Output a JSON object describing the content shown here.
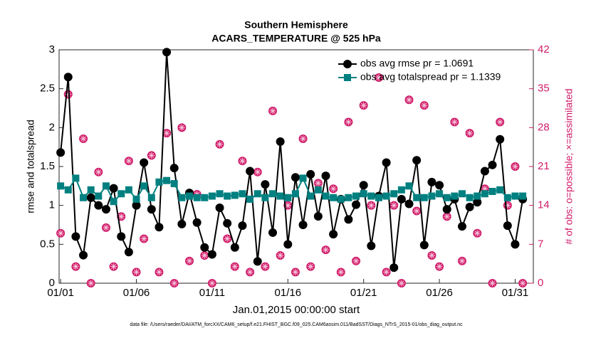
{
  "chart_data": {
    "type": "line",
    "title": "Southern Hemisphere",
    "subtitle": "ACARS_TEMPERATURE @ 525 hPa",
    "xlabel": "Jan.01,2015 00:00:00 start",
    "ylabel": "rmse and totalspread",
    "y2label": "# of obs: o=possible; ×=assimilated",
    "footnote": "data file: /Users/raeder/DAI/ATM_forcXX/CAM6_setup/f.e21.FHIST_BGC.f09_025.CAM6assim.011/BadSST/Diags_NTrS_2015-01/obs_diag_output.nc",
    "x": [
      1,
      1.5,
      2,
      2.5,
      3,
      3.5,
      4,
      4.5,
      5,
      5.5,
      6,
      6.5,
      7,
      7.5,
      8,
      8.5,
      9,
      9.5,
      10,
      10.5,
      11,
      11.5,
      12,
      12.5,
      13,
      13.5,
      14,
      14.5,
      15,
      15.5,
      16,
      16.5,
      17,
      17.5,
      18,
      18.5,
      19,
      19.5,
      20,
      20.5,
      21,
      21.5,
      22,
      22.5,
      23,
      23.5,
      24,
      24.5,
      25,
      25.5,
      26,
      26.5,
      27,
      27.5,
      28,
      28.5,
      29,
      29.5,
      30,
      30.5,
      31,
      31.5
    ],
    "series": [
      {
        "name": "obs avg rmse pr = 1.0691",
        "color": "#000000",
        "values": [
          1.68,
          2.65,
          0.6,
          0.36,
          1.1,
          1.0,
          0.95,
          1.22,
          0.6,
          0.4,
          1.0,
          1.55,
          0.95,
          0.72,
          2.97,
          1.48,
          0.76,
          1.16,
          0.78,
          0.46,
          0.37,
          0.97,
          0.77,
          0.46,
          0.74,
          1.44,
          0.28,
          1.27,
          0.65,
          1.82,
          0.5,
          1.36,
          0.75,
          1.4,
          0.86,
          1.38,
          0.63,
          1.08,
          0.82,
          1.01,
          1.26,
          0.48,
          1.12,
          1.55,
          0.2,
          1.08,
          1.02,
          1.58,
          0.49,
          1.3,
          1.26,
          0.95,
          1.08,
          0.73,
          0.98,
          1.04,
          1.44,
          1.52,
          1.85,
          0.74,
          0.5,
          1.08
        ]
      },
      {
        "name": "obs avg totalspread pr = 1.1339",
        "color": "#008080",
        "values": [
          1.25,
          1.2,
          1.35,
          1.1,
          1.2,
          1.12,
          1.25,
          1.05,
          1.15,
          1.2,
          1.08,
          1.25,
          1.1,
          1.3,
          1.32,
          1.28,
          1.1,
          1.12,
          1.1,
          1.1,
          1.12,
          1.15,
          1.12,
          1.13,
          1.15,
          1.08,
          1.15,
          1.1,
          1.15,
          1.12,
          1.1,
          1.15,
          1.35,
          1.12,
          1.2,
          1.12,
          1.1,
          1.08,
          1.1,
          1.12,
          1.15,
          1.12,
          1.1,
          1.12,
          1.15,
          1.2,
          1.25,
          1.1,
          1.1,
          1.12,
          1.15,
          1.1,
          1.12,
          1.15,
          1.1,
          1.12,
          1.15,
          1.18,
          1.2,
          1.1,
          1.12,
          1.12
        ]
      }
    ],
    "y2_series": {
      "color": "#d01c6a",
      "axis": "y2",
      "values": [
        9,
        34,
        3,
        26,
        0,
        20,
        10,
        3,
        12,
        22,
        2,
        8,
        23,
        2,
        27,
        0,
        28,
        4,
        16,
        5,
        0,
        25,
        8,
        3,
        22,
        2,
        20,
        3,
        31,
        5,
        14,
        2,
        26,
        3,
        18,
        6,
        17,
        2,
        29,
        4,
        32,
        14,
        37,
        2,
        14,
        0,
        33,
        13,
        32,
        5,
        3,
        12,
        29,
        4,
        27,
        9,
        17,
        0,
        29,
        14,
        21,
        0
      ]
    },
    "xlim": [
      0.9,
      32.2
    ],
    "xticks": [
      {
        "value": 1,
        "label": "01/01"
      },
      {
        "value": 6,
        "label": "01/06"
      },
      {
        "value": 11,
        "label": "01/11"
      },
      {
        "value": 16,
        "label": "01/16"
      },
      {
        "value": 21,
        "label": "01/21"
      },
      {
        "value": 26,
        "label": "01/26"
      },
      {
        "value": 31,
        "label": "01/31"
      }
    ],
    "ylim": [
      0,
      3
    ],
    "yticks": [
      0,
      0.5,
      1,
      1.5,
      2,
      2.5,
      3
    ],
    "y2lim": [
      0,
      42
    ],
    "y2ticks": [
      0,
      7,
      14,
      21,
      28,
      35,
      42
    ],
    "grid": false,
    "legend": "upper right"
  }
}
